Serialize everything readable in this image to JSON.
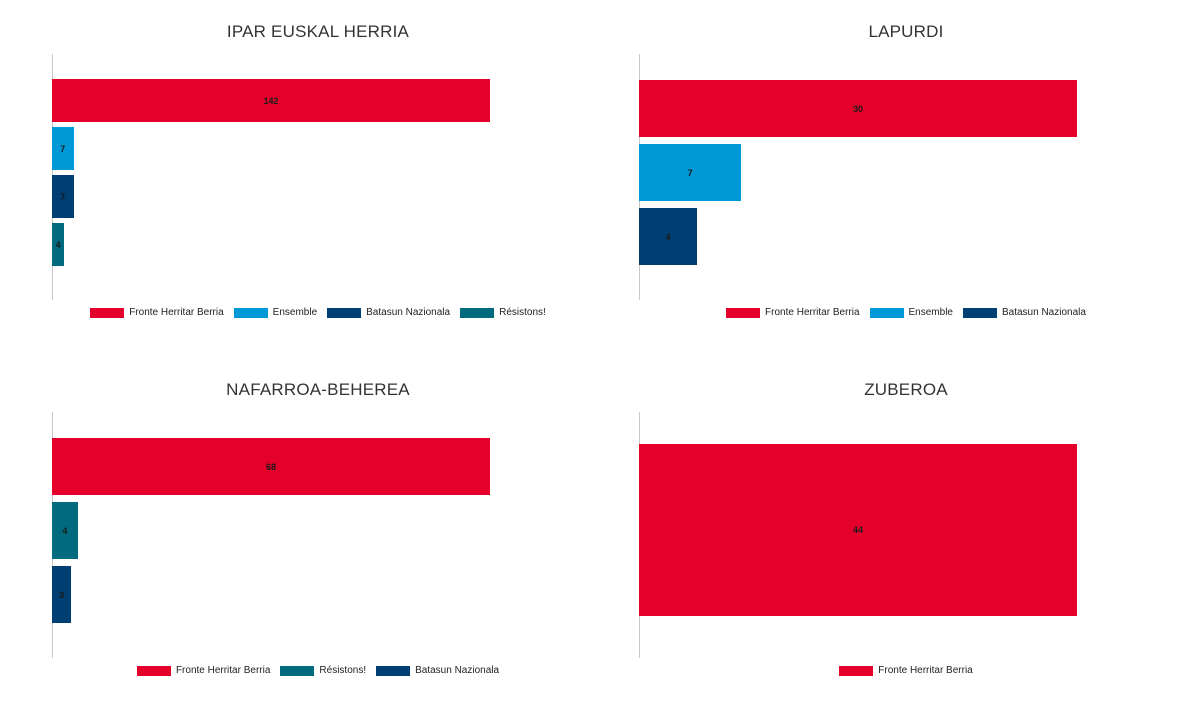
{
  "colors": {
    "Fronte Herritar Berria": "#e4002b",
    "Ensemble": "#0099d8",
    "Batasun Nazionala": "#003f73",
    "Résistons!": "#006a7e"
  },
  "chart_data": [
    {
      "type": "bar",
      "orientation": "horizontal",
      "title": "IPAR EUSKAL HERRIA",
      "categories": [
        "Fronte Herritar Berria",
        "Ensemble",
        "Batasun Nazionala",
        "Résistons!"
      ],
      "values": [
        142,
        7,
        7,
        4
      ],
      "xlim": [
        0,
        142
      ],
      "grid": false,
      "legend": "bottom"
    },
    {
      "type": "bar",
      "orientation": "horizontal",
      "title": "LAPURDI",
      "categories": [
        "Fronte Herritar Berria",
        "Ensemble",
        "Batasun Nazionala"
      ],
      "values": [
        30,
        7,
        4
      ],
      "xlim": [
        0,
        30
      ],
      "grid": false,
      "legend": "bottom"
    },
    {
      "type": "bar",
      "orientation": "horizontal",
      "title": "NAFARROA-BEHEREA",
      "categories": [
        "Fronte Herritar Berria",
        "Résistons!",
        "Batasun Nazionala"
      ],
      "values": [
        68,
        4,
        3
      ],
      "xlim": [
        0,
        68
      ],
      "grid": false,
      "legend": "bottom"
    },
    {
      "type": "bar",
      "orientation": "horizontal",
      "title": "ZUBEROA",
      "categories": [
        "Fronte Herritar Berria"
      ],
      "values": [
        44
      ],
      "xlim": [
        0,
        44
      ],
      "grid": false,
      "legend": "bottom"
    }
  ]
}
